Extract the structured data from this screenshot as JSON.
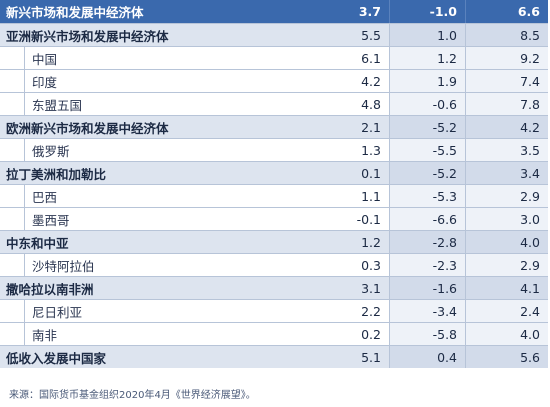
{
  "table": {
    "rows": [
      {
        "name": "新兴市场和发展中经济体",
        "v1": "3.7",
        "v2": "-1.0",
        "v3": "6.6",
        "kind": "head"
      },
      {
        "name": "亚洲新兴市场和发展中经济体",
        "v1": "5.5",
        "v2": "1.0",
        "v3": "8.5",
        "kind": "light"
      },
      {
        "name": "中国",
        "v1": "6.1",
        "v2": "1.2",
        "v3": "9.2",
        "kind": "sub"
      },
      {
        "name": "印度",
        "v1": "4.2",
        "v2": "1.9",
        "v3": "7.4",
        "kind": "sub"
      },
      {
        "name": "东盟五国",
        "v1": "4.8",
        "v2": "-0.6",
        "v3": "7.8",
        "kind": "sub"
      },
      {
        "name": "欧洲新兴市场和发展中经济体",
        "v1": "2.1",
        "v2": "-5.2",
        "v3": "4.2",
        "kind": "light"
      },
      {
        "name": "俄罗斯",
        "v1": "1.3",
        "v2": "-5.5",
        "v3": "3.5",
        "kind": "sub"
      },
      {
        "name": "拉丁美洲和加勒比",
        "v1": "0.1",
        "v2": "-5.2",
        "v3": "3.4",
        "kind": "light"
      },
      {
        "name": "巴西",
        "v1": "1.1",
        "v2": "-5.3",
        "v3": "2.9",
        "kind": "sub"
      },
      {
        "name": "墨西哥",
        "v1": "-0.1",
        "v2": "-6.6",
        "v3": "3.0",
        "kind": "sub"
      },
      {
        "name": "中东和中亚",
        "v1": "1.2",
        "v2": "-2.8",
        "v3": "4.0",
        "kind": "light"
      },
      {
        "name": "沙特阿拉伯",
        "v1": "0.3",
        "v2": "-2.3",
        "v3": "2.9",
        "kind": "sub"
      },
      {
        "name": "撒哈拉以南非洲",
        "v1": "3.1",
        "v2": "-1.6",
        "v3": "4.1",
        "kind": "light"
      },
      {
        "name": "尼日利亚",
        "v1": "2.2",
        "v2": "-3.4",
        "v3": "2.4",
        "kind": "sub"
      },
      {
        "name": "南非",
        "v1": "0.2",
        "v2": "-5.8",
        "v3": "4.0",
        "kind": "sub"
      },
      {
        "name": "低收入发展中国家",
        "v1": "5.1",
        "v2": "0.4",
        "v3": "5.6",
        "kind": "light"
      }
    ]
  },
  "source": "来源：国际货币基金组织2020年4月《世界经济展望》。"
}
